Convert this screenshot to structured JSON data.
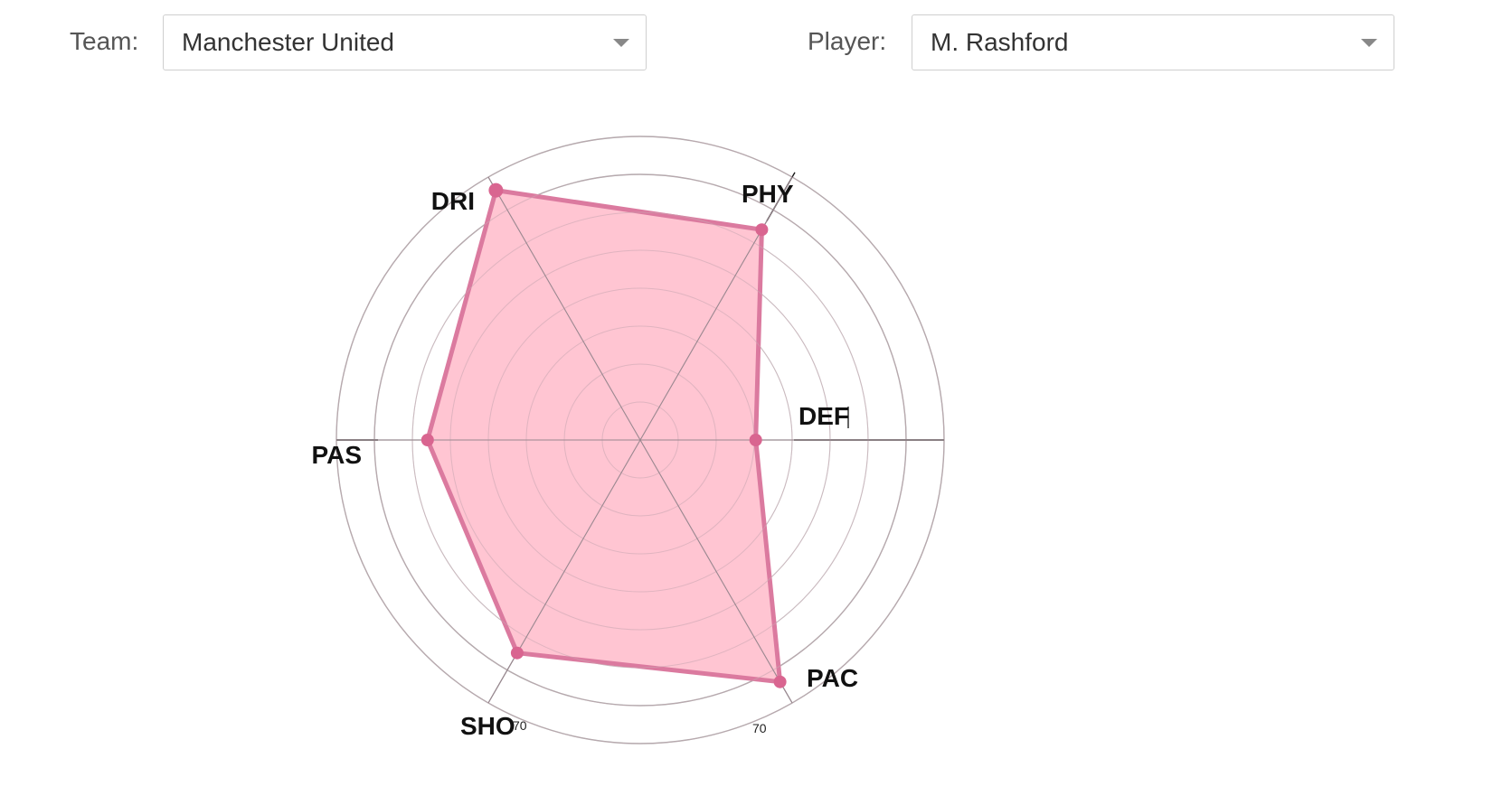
{
  "controls": {
    "team_label": "Team:",
    "team_value": "Manchester United",
    "player_label": "Player:",
    "player_value": "M. Rashford"
  },
  "chart_data": {
    "type": "radar",
    "title": "",
    "axes": [
      "DEF",
      "PHY",
      "DRI",
      "PAS",
      "SHO",
      "PAC"
    ],
    "series": [
      {
        "values": [
          38,
          80,
          95,
          70,
          81,
          92
        ]
      }
    ],
    "tick_labels": [
      "70",
      "70"
    ],
    "colors": {
      "fill": "#ffc2d0",
      "stroke": "#db7a9f",
      "point": "#d96590",
      "grid": "#aaaaaa",
      "spoke": "#8a8a8a"
    }
  }
}
